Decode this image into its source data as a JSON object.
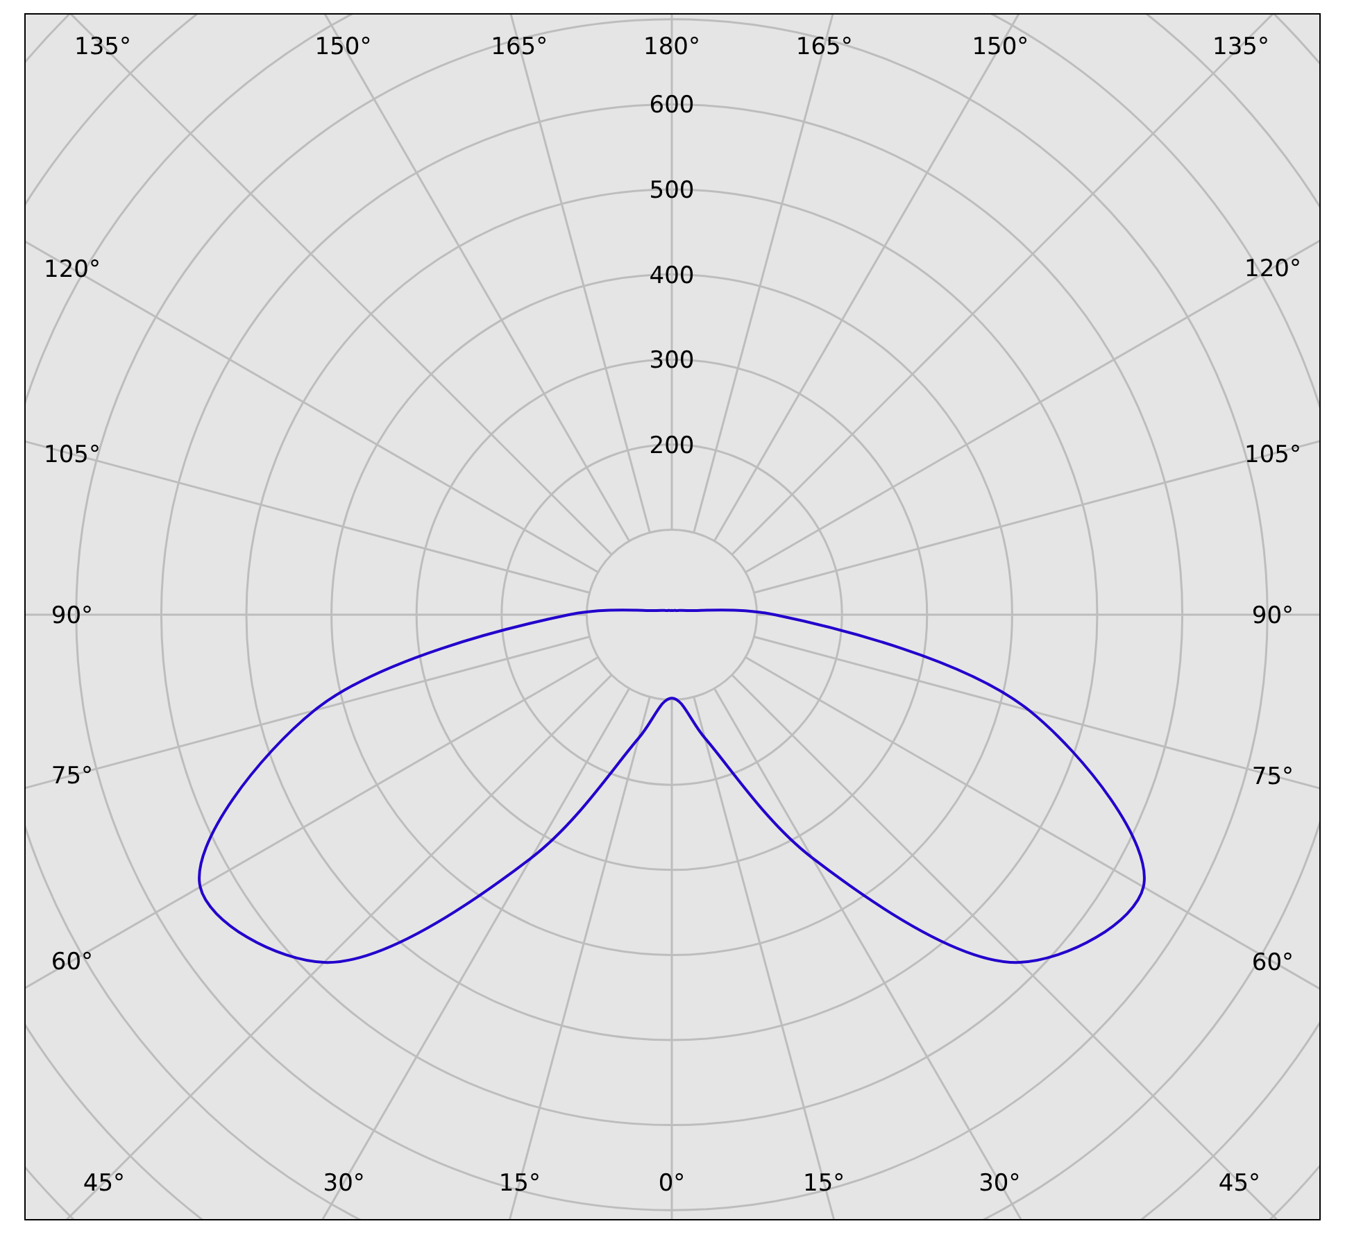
{
  "chart_data": {
    "type": "radar",
    "categories": [
      "180°",
      "165°",
      "150°",
      "135°",
      "120°",
      "105°",
      "90°",
      "75°",
      "60°",
      "45°",
      "30°",
      "15°",
      "0°",
      "15°",
      "30°",
      "45°",
      "60°",
      "75°",
      "90°",
      "105°",
      "120°",
      "135°",
      "150°",
      "165°"
    ],
    "series": [
      {
        "color": "#2200cc",
        "values": [
          5,
          5,
          6,
          7,
          10,
          19,
          121,
          435,
          640,
          578,
          330,
          150,
          98,
          150,
          330,
          578,
          640,
          435,
          121,
          19,
          10,
          7,
          6,
          5
        ]
      }
    ],
    "ylim": [
      0,
      1000
    ],
    "yticks": [
      200,
      300,
      400,
      500,
      600
    ],
    "grid": true
  }
}
